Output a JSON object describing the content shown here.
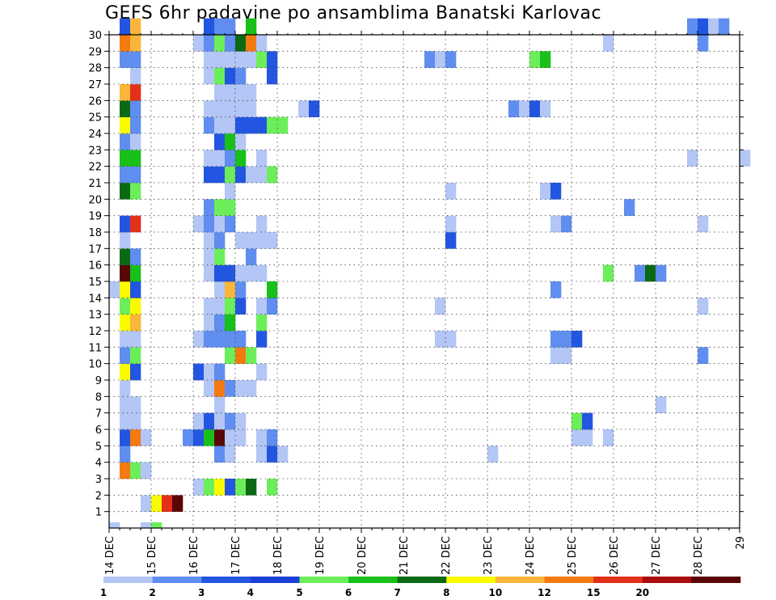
{
  "chart_data": {
    "type": "heatmap",
    "title": "GEFS 6hr padavine po ansamblima Banatski Karlovac",
    "x_ticks": [
      "14 DEC",
      "15 DEC",
      "16 DEC",
      "17 DEC",
      "18 DEC",
      "19 DEC",
      "20 DEC",
      "21 DEC",
      "22 DEC",
      "23 DEC",
      "24 DEC",
      "25 DEC",
      "26 DEC",
      "27 DEC",
      "28 DEC",
      "29"
    ],
    "y_ticks": [
      "1",
      "2",
      "3",
      "4",
      "5",
      "6",
      "7",
      "8",
      "9",
      "10",
      "11",
      "12",
      "13",
      "14",
      "15",
      "16",
      "17",
      "18",
      "19",
      "20",
      "21",
      "22",
      "23",
      "24",
      "25",
      "26",
      "27",
      "28",
      "29",
      "30"
    ],
    "time_steps_per_day": 4,
    "ylim": [
      0,
      30
    ],
    "grid": true,
    "colorbar": {
      "levels": [
        "1",
        "2",
        "3",
        "4",
        "5",
        "6",
        "7",
        "8",
        "10",
        "12",
        "15",
        "20"
      ],
      "colors": [
        "#b3c6f5",
        "#5f8ef0",
        "#2356e0",
        "#1a3fd6",
        "#6cee5a",
        "#19c019",
        "#0a6a14",
        "#fafa00",
        "#f9b63a",
        "#f37a10",
        "#e33018",
        "#aa0d0d",
        "#5a0606"
      ]
    },
    "cells": [
      [
        0,
        0,
        1.2
      ],
      [
        0,
        3,
        1.5
      ],
      [
        0,
        4,
        5.0
      ],
      [
        1,
        3,
        1.8
      ],
      [
        1,
        4,
        8.0
      ],
      [
        1,
        5,
        15.0
      ],
      [
        1,
        6,
        20.0
      ],
      [
        2,
        8,
        1.5
      ],
      [
        2,
        9,
        5.0
      ],
      [
        2,
        10,
        8.0
      ],
      [
        2,
        11,
        3.5
      ],
      [
        2,
        12,
        5.0
      ],
      [
        2,
        13,
        7.0
      ],
      [
        2,
        15,
        5.0
      ],
      [
        3,
        1,
        12.0
      ],
      [
        3,
        2,
        5.5
      ],
      [
        3,
        3,
        1.2
      ],
      [
        4,
        1,
        2.5
      ],
      [
        4,
        10,
        2.5
      ],
      [
        4,
        11,
        1.3
      ],
      [
        4,
        14,
        1.3
      ],
      [
        4,
        15,
        3.5
      ],
      [
        4,
        16,
        1.2
      ],
      [
        4,
        36,
        1.5
      ],
      [
        5,
        1,
        3.5
      ],
      [
        5,
        2,
        12.0
      ],
      [
        5,
        3,
        1.2
      ],
      [
        5,
        7,
        2.5
      ],
      [
        5,
        8,
        3.5
      ],
      [
        5,
        9,
        6.0
      ],
      [
        5,
        10,
        20.0
      ],
      [
        5,
        11,
        1.5
      ],
      [
        5,
        12,
        1.2
      ],
      [
        5,
        14,
        1.5
      ],
      [
        5,
        15,
        2.5
      ],
      [
        5,
        44,
        1.2
      ],
      [
        5,
        45,
        1.2
      ],
      [
        5,
        47,
        1.5
      ],
      [
        6,
        1,
        1.2
      ],
      [
        6,
        2,
        1.2
      ],
      [
        6,
        8,
        1.5
      ],
      [
        6,
        9,
        3.5
      ],
      [
        6,
        10,
        1.3
      ],
      [
        6,
        11,
        2.5
      ],
      [
        6,
        12,
        1.5
      ],
      [
        6,
        44,
        5.5
      ],
      [
        6,
        45,
        3.5
      ],
      [
        7,
        1,
        1.4
      ],
      [
        7,
        2,
        1.4
      ],
      [
        7,
        10,
        1.2
      ],
      [
        7,
        52,
        1.5
      ],
      [
        8,
        1,
        1.2
      ],
      [
        8,
        9,
        1.5
      ],
      [
        8,
        10,
        12.0
      ],
      [
        8,
        11,
        2.5
      ],
      [
        8,
        12,
        1.2
      ],
      [
        8,
        13,
        1.2
      ],
      [
        9,
        1,
        8.0
      ],
      [
        9,
        2,
        3.5
      ],
      [
        9,
        8,
        3.5
      ],
      [
        9,
        9,
        1.3
      ],
      [
        9,
        10,
        2.5
      ],
      [
        9,
        14,
        1.3
      ],
      [
        10,
        1,
        2.5
      ],
      [
        10,
        2,
        5.0
      ],
      [
        10,
        11,
        5.0
      ],
      [
        10,
        12,
        12.0
      ],
      [
        10,
        13,
        5.5
      ],
      [
        10,
        42,
        1.5
      ],
      [
        10,
        43,
        1.5
      ],
      [
        10,
        56,
        2.5
      ],
      [
        11,
        1,
        1.4
      ],
      [
        11,
        2,
        1.4
      ],
      [
        11,
        8,
        1.5
      ],
      [
        11,
        9,
        2.5
      ],
      [
        11,
        10,
        2.5
      ],
      [
        11,
        11,
        2.5
      ],
      [
        11,
        12,
        2.5
      ],
      [
        11,
        14,
        3.5
      ],
      [
        11,
        31,
        1.4
      ],
      [
        11,
        32,
        1.4
      ],
      [
        11,
        42,
        2.5
      ],
      [
        11,
        43,
        2.5
      ],
      [
        11,
        44,
        3.5
      ],
      [
        12,
        1,
        8.0
      ],
      [
        12,
        2,
        10.0
      ],
      [
        12,
        9,
        1.3
      ],
      [
        12,
        10,
        2.5
      ],
      [
        12,
        11,
        6.0
      ],
      [
        12,
        14,
        5.0
      ],
      [
        13,
        1,
        5.5
      ],
      [
        13,
        2,
        8.0
      ],
      [
        13,
        9,
        1.3
      ],
      [
        13,
        10,
        1.5
      ],
      [
        13,
        11,
        5.0
      ],
      [
        13,
        12,
        3.5
      ],
      [
        13,
        14,
        1.2
      ],
      [
        13,
        15,
        2.5
      ],
      [
        13,
        31,
        1.2
      ],
      [
        13,
        56,
        1.2
      ],
      [
        14,
        0,
        1.3
      ],
      [
        14,
        1,
        8.0
      ],
      [
        14,
        2,
        3.5
      ],
      [
        14,
        10,
        1.5
      ],
      [
        14,
        11,
        10.0
      ],
      [
        14,
        12,
        2.5
      ],
      [
        14,
        15,
        6.0
      ],
      [
        14,
        42,
        2.5
      ],
      [
        15,
        1,
        20.0
      ],
      [
        15,
        2,
        6.0
      ],
      [
        15,
        9,
        1.3
      ],
      [
        15,
        10,
        3.5
      ],
      [
        15,
        11,
        3.5
      ],
      [
        15,
        12,
        1.3
      ],
      [
        15,
        13,
        1.3
      ],
      [
        15,
        14,
        1.3
      ],
      [
        15,
        47,
        5.0
      ],
      [
        15,
        50,
        2.5
      ],
      [
        15,
        51,
        7.0
      ],
      [
        15,
        52,
        2.5
      ],
      [
        16,
        1,
        7.0
      ],
      [
        16,
        2,
        2.5
      ],
      [
        16,
        9,
        1.3
      ],
      [
        16,
        10,
        5.0
      ],
      [
        16,
        13,
        2.5
      ],
      [
        17,
        1,
        1.3
      ],
      [
        17,
        9,
        1.5
      ],
      [
        17,
        10,
        2.5
      ],
      [
        17,
        12,
        1.2
      ],
      [
        17,
        13,
        1.2
      ],
      [
        17,
        14,
        1.2
      ],
      [
        17,
        15,
        1.2
      ],
      [
        17,
        32,
        3.5
      ],
      [
        18,
        1,
        3.5
      ],
      [
        18,
        2,
        15.0
      ],
      [
        18,
        8,
        1.5
      ],
      [
        18,
        9,
        2.5
      ],
      [
        18,
        10,
        1.5
      ],
      [
        18,
        11,
        2.5
      ],
      [
        18,
        14,
        1.2
      ],
      [
        18,
        32,
        1.5
      ],
      [
        18,
        42,
        1.3
      ],
      [
        18,
        43,
        2.5
      ],
      [
        18,
        56,
        1.2
      ],
      [
        19,
        9,
        2.5
      ],
      [
        19,
        10,
        5.0
      ],
      [
        19,
        11,
        5.0
      ],
      [
        19,
        49,
        2.5
      ],
      [
        20,
        1,
        7.0
      ],
      [
        20,
        2,
        5.0
      ],
      [
        20,
        11,
        1.2
      ],
      [
        20,
        32,
        1.2
      ],
      [
        20,
        41,
        1.5
      ],
      [
        20,
        42,
        3.5
      ],
      [
        21,
        1,
        2.5
      ],
      [
        21,
        2,
        2.5
      ],
      [
        21,
        9,
        3.5
      ],
      [
        21,
        10,
        3.5
      ],
      [
        21,
        11,
        5.0
      ],
      [
        21,
        12,
        3.5
      ],
      [
        21,
        13,
        1.3
      ],
      [
        21,
        14,
        1.3
      ],
      [
        21,
        15,
        5.0
      ],
      [
        22,
        1,
        6.0
      ],
      [
        22,
        2,
        6.0
      ],
      [
        22,
        9,
        1.3
      ],
      [
        22,
        10,
        1.3
      ],
      [
        22,
        11,
        2.5
      ],
      [
        22,
        12,
        6.0
      ],
      [
        22,
        14,
        1.2
      ],
      [
        22,
        55,
        1.2
      ],
      [
        22,
        60,
        1.5
      ],
      [
        23,
        1,
        2.5
      ],
      [
        23,
        2,
        1.3
      ],
      [
        23,
        10,
        3.5
      ],
      [
        23,
        11,
        6.0
      ],
      [
        23,
        12,
        1.2
      ],
      [
        24,
        1,
        8.0
      ],
      [
        24,
        2,
        2.5
      ],
      [
        24,
        9,
        2.5
      ],
      [
        24,
        10,
        1.2
      ],
      [
        24,
        11,
        1.5
      ],
      [
        24,
        12,
        3.5
      ],
      [
        24,
        13,
        3.5
      ],
      [
        24,
        14,
        3.5
      ],
      [
        24,
        15,
        5.0
      ],
      [
        24,
        16,
        5.0
      ],
      [
        25,
        1,
        7.0
      ],
      [
        25,
        2,
        2.5
      ],
      [
        25,
        9,
        1.3
      ],
      [
        25,
        10,
        1.3
      ],
      [
        25,
        11,
        1.3
      ],
      [
        25,
        12,
        1.3
      ],
      [
        25,
        13,
        1.3
      ],
      [
        25,
        18,
        1.3
      ],
      [
        25,
        19,
        3.5
      ],
      [
        25,
        38,
        2.5
      ],
      [
        25,
        39,
        1.5
      ],
      [
        25,
        40,
        3.5
      ],
      [
        25,
        41,
        1.5
      ],
      [
        26,
        1,
        10.0
      ],
      [
        26,
        2,
        15.0
      ],
      [
        26,
        10,
        1.2
      ],
      [
        26,
        11,
        1.2
      ],
      [
        26,
        12,
        1.2
      ],
      [
        26,
        13,
        1.2
      ],
      [
        27,
        2,
        1.3
      ],
      [
        27,
        9,
        1.2
      ],
      [
        27,
        10,
        5.5
      ],
      [
        27,
        11,
        3.5
      ],
      [
        27,
        12,
        2.5
      ],
      [
        27,
        15,
        3.5
      ],
      [
        28,
        1,
        2.5
      ],
      [
        28,
        2,
        2.5
      ],
      [
        28,
        9,
        1.2
      ],
      [
        28,
        10,
        1.2
      ],
      [
        28,
        11,
        1.2
      ],
      [
        28,
        12,
        1.2
      ],
      [
        28,
        13,
        1.2
      ],
      [
        28,
        14,
        5.0
      ],
      [
        28,
        15,
        3.5
      ],
      [
        28,
        30,
        2.5
      ],
      [
        28,
        31,
        1.5
      ],
      [
        28,
        32,
        2.5
      ],
      [
        28,
        40,
        5.0
      ],
      [
        28,
        41,
        6.0
      ],
      [
        29,
        1,
        12.0
      ],
      [
        29,
        2,
        10.0
      ],
      [
        29,
        8,
        1.3
      ],
      [
        29,
        9,
        2.5
      ],
      [
        29,
        10,
        5.0
      ],
      [
        29,
        11,
        2.5
      ],
      [
        29,
        12,
        7.0
      ],
      [
        29,
        13,
        12.0
      ],
      [
        29,
        14,
        1.3
      ],
      [
        29,
        47,
        1.2
      ],
      [
        29,
        56,
        2.5
      ],
      [
        30,
        1,
        3.5
      ],
      [
        30,
        2,
        10.0
      ],
      [
        30,
        9,
        3.5
      ],
      [
        30,
        10,
        2.5
      ],
      [
        30,
        11,
        2.5
      ],
      [
        30,
        13,
        6.0
      ],
      [
        30,
        55,
        2.5
      ],
      [
        30,
        56,
        3.5
      ],
      [
        30,
        57,
        1.4
      ],
      [
        30,
        58,
        2.5
      ]
    ]
  }
}
